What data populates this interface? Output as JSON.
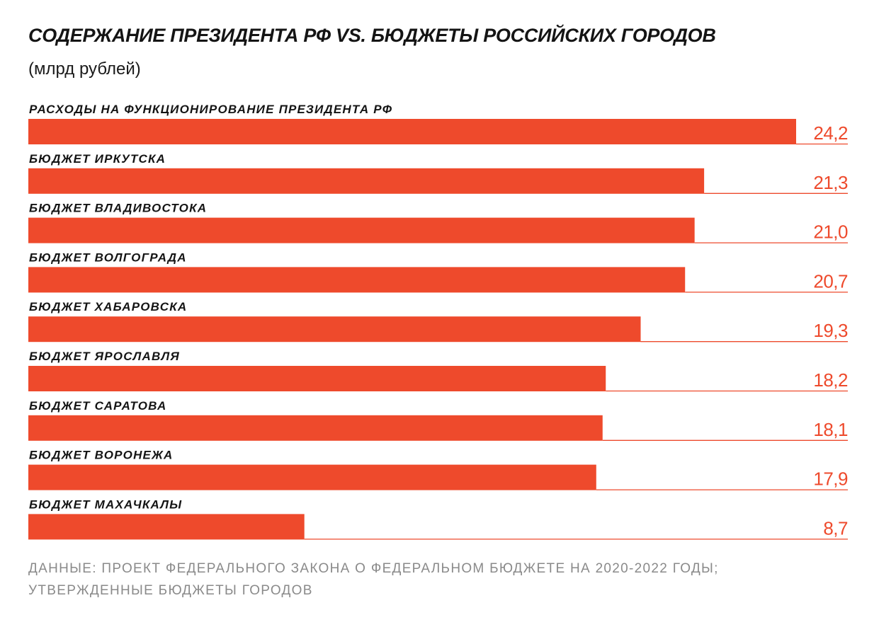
{
  "colors": {
    "bar": "#ee4a2c",
    "value_text": "#ee4a2c",
    "text": "#141414",
    "source_text": "#8a8a8a",
    "track_line": "#ee4a2c"
  },
  "source": {
    "line1": "ДАННЫЕ: ПРОЕКТ ФЕДЕРАЛЬНОГО ЗАКОНА О ФЕДЕРАЛЬНОМ БЮДЖЕТЕ НА 2020-2022 ГОДЫ;",
    "line2": "УТВЕРЖДЕННЫЕ БЮДЖЕТЫ ГОРОДОВ"
  },
  "chart_data": {
    "type": "bar",
    "orientation": "horizontal",
    "title": "СОДЕРЖАНИЕ ПРЕЗИДЕНТА РФ VS. БЮДЖЕТЫ РОССИЙСКИХ ГОРОДОВ",
    "subtitle": "(млрд рублей)",
    "xlabel": "",
    "ylabel": "",
    "grid": false,
    "legend": "none",
    "xlim": [
      0,
      24.7
    ],
    "categories": [
      "РАСХОДЫ НА ФУНКЦИОНИРОВАНИЕ ПРЕЗИДЕНТА РФ",
      "БЮДЖЕТ ИРКУТСКА",
      "БЮДЖЕТ ВЛАДИВОСТОКА",
      "БЮДЖЕТ ВОЛГОГРАДА",
      "БЮДЖЕТ ХАБАРОВСКА",
      "БЮДЖЕТ ЯРОСЛАВЛЯ",
      "БЮДЖЕТ САРАТОВА",
      "БЮДЖЕТ ВОРОНЕЖА",
      "БЮДЖЕТ МАХАЧКАЛЫ"
    ],
    "values": [
      24.2,
      21.3,
      21.0,
      20.7,
      19.3,
      18.2,
      18.1,
      17.9,
      8.7
    ],
    "value_labels": [
      "24,2",
      "21,3",
      "21,0",
      "20,7",
      "19,3",
      "18,2",
      "18,1",
      "17,9",
      "8,7"
    ]
  }
}
